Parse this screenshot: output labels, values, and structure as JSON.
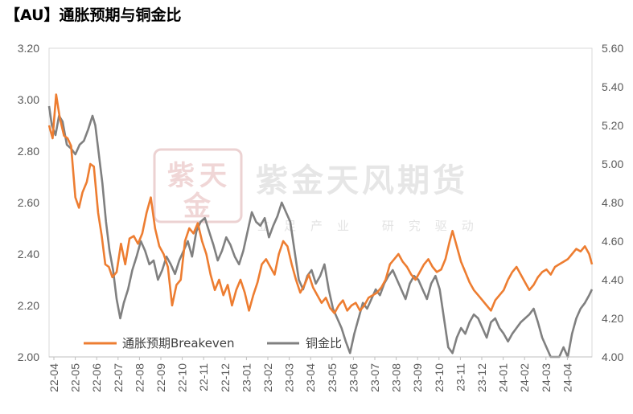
{
  "title": "【AU】通胀预期与铜金比",
  "watermark": {
    "main": "紫金天风期货",
    "sub": "立足产业 研究驱动",
    "logo_chars": [
      "紫",
      "天",
      "金"
    ]
  },
  "colors": {
    "breakeven": "#ED7D31",
    "copper_gold": "#808080",
    "axis": "#595959",
    "watermark": "#E8D0D0"
  },
  "chart_data": {
    "type": "line",
    "title": "【AU】通胀预期与铜金比",
    "x_tick_labels": [
      "22-04",
      "22-05",
      "22-06",
      "22-07",
      "22-08",
      "22-09",
      "22-10",
      "22-11",
      "22-12",
      "23-01",
      "23-02",
      "23-03",
      "23-04",
      "23-05",
      "23-06",
      "23-07",
      "23-08",
      "23-09",
      "23-10",
      "23-11",
      "23-12",
      "24-01",
      "24-02",
      "24-03",
      "24-04"
    ],
    "y_left": {
      "min": 2.0,
      "max": 3.2,
      "ticks": [
        "2.00",
        "2.20",
        "2.40",
        "2.60",
        "2.80",
        "3.00",
        "3.20"
      ]
    },
    "y_right": {
      "min": 4.0,
      "max": 5.6,
      "ticks": [
        "4.00",
        "4.20",
        "4.40",
        "4.60",
        "4.80",
        "5.00",
        "5.20",
        "5.40",
        "5.60"
      ]
    },
    "grid": false,
    "legend_position": "bottom-left-inside",
    "series": [
      {
        "name": "通胀预期Breakeven",
        "axis": "left",
        "points": [
          [
            "2022-04-01",
            2.9
          ],
          [
            "2022-04-06",
            2.85
          ],
          [
            "2022-04-11",
            3.02
          ],
          [
            "2022-04-16",
            2.93
          ],
          [
            "2022-04-22",
            2.86
          ],
          [
            "2022-04-27",
            2.85
          ],
          [
            "2022-05-02",
            2.82
          ],
          [
            "2022-05-08",
            2.62
          ],
          [
            "2022-05-13",
            2.58
          ],
          [
            "2022-05-18",
            2.64
          ],
          [
            "2022-05-24",
            2.68
          ],
          [
            "2022-05-29",
            2.75
          ],
          [
            "2022-06-03",
            2.74
          ],
          [
            "2022-06-09",
            2.56
          ],
          [
            "2022-06-14",
            2.47
          ],
          [
            "2022-06-19",
            2.36
          ],
          [
            "2022-06-24",
            2.35
          ],
          [
            "2022-06-29",
            2.31
          ],
          [
            "2022-07-05",
            2.33
          ],
          [
            "2022-07-11",
            2.44
          ],
          [
            "2022-07-17",
            2.36
          ],
          [
            "2022-07-23",
            2.46
          ],
          [
            "2022-07-29",
            2.47
          ],
          [
            "2022-08-04",
            2.44
          ],
          [
            "2022-08-10",
            2.48
          ],
          [
            "2022-08-16",
            2.56
          ],
          [
            "2022-08-22",
            2.62
          ],
          [
            "2022-08-28",
            2.5
          ],
          [
            "2022-09-03",
            2.43
          ],
          [
            "2022-09-09",
            2.4
          ],
          [
            "2022-09-15",
            2.35
          ],
          [
            "2022-09-21",
            2.2
          ],
          [
            "2022-09-27",
            2.28
          ],
          [
            "2022-10-03",
            2.3
          ],
          [
            "2022-10-09",
            2.45
          ],
          [
            "2022-10-15",
            2.5
          ],
          [
            "2022-10-21",
            2.48
          ],
          [
            "2022-10-27",
            2.52
          ],
          [
            "2022-11-02",
            2.45
          ],
          [
            "2022-11-08",
            2.4
          ],
          [
            "2022-11-14",
            2.32
          ],
          [
            "2022-11-20",
            2.26
          ],
          [
            "2022-11-26",
            2.3
          ],
          [
            "2022-12-02",
            2.24
          ],
          [
            "2022-12-08",
            2.28
          ],
          [
            "2022-12-14",
            2.2
          ],
          [
            "2022-12-20",
            2.26
          ],
          [
            "2022-12-26",
            2.3
          ],
          [
            "2023-01-01",
            2.25
          ],
          [
            "2023-01-07",
            2.18
          ],
          [
            "2023-01-13",
            2.24
          ],
          [
            "2023-01-19",
            2.29
          ],
          [
            "2023-01-25",
            2.36
          ],
          [
            "2023-01-31",
            2.38
          ],
          [
            "2023-02-06",
            2.35
          ],
          [
            "2023-02-12",
            2.32
          ],
          [
            "2023-02-18",
            2.4
          ],
          [
            "2023-02-24",
            2.45
          ],
          [
            "2023-03-02",
            2.43
          ],
          [
            "2023-03-08",
            2.36
          ],
          [
            "2023-03-14",
            2.3
          ],
          [
            "2023-03-20",
            2.25
          ],
          [
            "2023-03-26",
            2.28
          ],
          [
            "2023-04-01",
            2.32
          ],
          [
            "2023-04-07",
            2.27
          ],
          [
            "2023-04-13",
            2.24
          ],
          [
            "2023-04-19",
            2.21
          ],
          [
            "2023-04-25",
            2.23
          ],
          [
            "2023-05-01",
            2.19
          ],
          [
            "2023-05-07",
            2.17
          ],
          [
            "2023-05-13",
            2.2
          ],
          [
            "2023-05-19",
            2.22
          ],
          [
            "2023-05-25",
            2.18
          ],
          [
            "2023-05-31",
            2.2
          ],
          [
            "2023-06-06",
            2.21
          ],
          [
            "2023-06-12",
            2.18
          ],
          [
            "2023-06-18",
            2.2
          ],
          [
            "2023-06-24",
            2.23
          ],
          [
            "2023-06-30",
            2.24
          ],
          [
            "2023-07-06",
            2.25
          ],
          [
            "2023-07-12",
            2.27
          ],
          [
            "2023-07-18",
            2.3
          ],
          [
            "2023-07-24",
            2.36
          ],
          [
            "2023-07-30",
            2.38
          ],
          [
            "2023-08-05",
            2.4
          ],
          [
            "2023-08-11",
            2.37
          ],
          [
            "2023-08-17",
            2.35
          ],
          [
            "2023-08-23",
            2.32
          ],
          [
            "2023-08-29",
            2.3
          ],
          [
            "2023-09-04",
            2.33
          ],
          [
            "2023-09-10",
            2.36
          ],
          [
            "2023-09-16",
            2.38
          ],
          [
            "2023-09-22",
            2.35
          ],
          [
            "2023-09-28",
            2.33
          ],
          [
            "2023-10-04",
            2.34
          ],
          [
            "2023-10-10",
            2.38
          ],
          [
            "2023-10-16",
            2.45
          ],
          [
            "2023-10-20",
            2.49
          ],
          [
            "2023-10-26",
            2.43
          ],
          [
            "2023-11-01",
            2.37
          ],
          [
            "2023-11-07",
            2.33
          ],
          [
            "2023-11-13",
            2.29
          ],
          [
            "2023-11-19",
            2.26
          ],
          [
            "2023-11-25",
            2.24
          ],
          [
            "2023-12-01",
            2.22
          ],
          [
            "2023-12-07",
            2.2
          ],
          [
            "2023-12-13",
            2.18
          ],
          [
            "2023-12-19",
            2.22
          ],
          [
            "2023-12-25",
            2.24
          ],
          [
            "2023-12-31",
            2.26
          ],
          [
            "2024-01-06",
            2.3
          ],
          [
            "2024-01-12",
            2.33
          ],
          [
            "2024-01-18",
            2.35
          ],
          [
            "2024-01-24",
            2.32
          ],
          [
            "2024-01-30",
            2.29
          ],
          [
            "2024-02-05",
            2.26
          ],
          [
            "2024-02-11",
            2.28
          ],
          [
            "2024-02-17",
            2.31
          ],
          [
            "2024-02-23",
            2.33
          ],
          [
            "2024-02-29",
            2.34
          ],
          [
            "2024-03-06",
            2.32
          ],
          [
            "2024-03-12",
            2.35
          ],
          [
            "2024-03-18",
            2.36
          ],
          [
            "2024-03-24",
            2.37
          ],
          [
            "2024-03-30",
            2.38
          ],
          [
            "2024-04-05",
            2.4
          ],
          [
            "2024-04-11",
            2.42
          ],
          [
            "2024-04-17",
            2.41
          ],
          [
            "2024-04-23",
            2.43
          ],
          [
            "2024-04-29",
            2.4
          ],
          [
            "2024-05-03",
            2.36
          ]
        ]
      },
      {
        "name": "铜金比",
        "axis": "right",
        "points": [
          [
            "2022-04-01",
            5.3
          ],
          [
            "2022-04-05",
            5.2
          ],
          [
            "2022-04-10",
            5.15
          ],
          [
            "2022-04-15",
            5.25
          ],
          [
            "2022-04-20",
            5.22
          ],
          [
            "2022-04-26",
            5.1
          ],
          [
            "2022-05-02",
            5.08
          ],
          [
            "2022-05-08",
            5.05
          ],
          [
            "2022-05-14",
            5.1
          ],
          [
            "2022-05-20",
            5.12
          ],
          [
            "2022-05-26",
            5.18
          ],
          [
            "2022-06-01",
            5.25
          ],
          [
            "2022-06-05",
            5.2
          ],
          [
            "2022-06-10",
            5.05
          ],
          [
            "2022-06-15",
            4.9
          ],
          [
            "2022-06-20",
            4.7
          ],
          [
            "2022-06-25",
            4.55
          ],
          [
            "2022-06-30",
            4.45
          ],
          [
            "2022-07-05",
            4.3
          ],
          [
            "2022-07-10",
            4.2
          ],
          [
            "2022-07-15",
            4.28
          ],
          [
            "2022-07-21",
            4.35
          ],
          [
            "2022-07-27",
            4.45
          ],
          [
            "2022-08-02",
            4.52
          ],
          [
            "2022-08-08",
            4.6
          ],
          [
            "2022-08-14",
            4.55
          ],
          [
            "2022-08-20",
            4.48
          ],
          [
            "2022-08-26",
            4.5
          ],
          [
            "2022-09-01",
            4.4
          ],
          [
            "2022-09-07",
            4.45
          ],
          [
            "2022-09-13",
            4.52
          ],
          [
            "2022-09-19",
            4.48
          ],
          [
            "2022-09-25",
            4.43
          ],
          [
            "2022-10-01",
            4.5
          ],
          [
            "2022-10-07",
            4.55
          ],
          [
            "2022-10-13",
            4.6
          ],
          [
            "2022-10-19",
            4.52
          ],
          [
            "2022-10-25",
            4.65
          ],
          [
            "2022-10-31",
            4.7
          ],
          [
            "2022-11-06",
            4.72
          ],
          [
            "2022-11-12",
            4.65
          ],
          [
            "2022-11-18",
            4.58
          ],
          [
            "2022-11-24",
            4.5
          ],
          [
            "2022-11-30",
            4.55
          ],
          [
            "2022-12-06",
            4.62
          ],
          [
            "2022-12-12",
            4.58
          ],
          [
            "2022-12-18",
            4.52
          ],
          [
            "2022-12-24",
            4.48
          ],
          [
            "2022-12-30",
            4.55
          ],
          [
            "2023-01-05",
            4.65
          ],
          [
            "2023-01-11",
            4.75
          ],
          [
            "2023-01-17",
            4.7
          ],
          [
            "2023-01-23",
            4.68
          ],
          [
            "2023-01-29",
            4.72
          ],
          [
            "2023-02-04",
            4.62
          ],
          [
            "2023-02-10",
            4.68
          ],
          [
            "2023-02-16",
            4.73
          ],
          [
            "2023-02-22",
            4.8
          ],
          [
            "2023-02-28",
            4.75
          ],
          [
            "2023-03-06",
            4.7
          ],
          [
            "2023-03-12",
            4.55
          ],
          [
            "2023-03-18",
            4.4
          ],
          [
            "2023-03-24",
            4.35
          ],
          [
            "2023-03-30",
            4.42
          ],
          [
            "2023-04-05",
            4.45
          ],
          [
            "2023-04-11",
            4.38
          ],
          [
            "2023-04-17",
            4.42
          ],
          [
            "2023-04-23",
            4.48
          ],
          [
            "2023-04-29",
            4.35
          ],
          [
            "2023-05-05",
            4.25
          ],
          [
            "2023-05-11",
            4.2
          ],
          [
            "2023-05-17",
            4.15
          ],
          [
            "2023-05-23",
            4.08
          ],
          [
            "2023-05-29",
            4.02
          ],
          [
            "2023-06-04",
            4.12
          ],
          [
            "2023-06-10",
            4.2
          ],
          [
            "2023-06-16",
            4.28
          ],
          [
            "2023-06-22",
            4.25
          ],
          [
            "2023-06-28",
            4.3
          ],
          [
            "2023-07-04",
            4.35
          ],
          [
            "2023-07-10",
            4.32
          ],
          [
            "2023-07-16",
            4.38
          ],
          [
            "2023-07-22",
            4.42
          ],
          [
            "2023-07-28",
            4.45
          ],
          [
            "2023-08-03",
            4.4
          ],
          [
            "2023-08-09",
            4.35
          ],
          [
            "2023-08-15",
            4.3
          ],
          [
            "2023-08-21",
            4.38
          ],
          [
            "2023-08-27",
            4.42
          ],
          [
            "2023-09-02",
            4.4
          ],
          [
            "2023-09-08",
            4.35
          ],
          [
            "2023-09-14",
            4.3
          ],
          [
            "2023-09-20",
            4.38
          ],
          [
            "2023-09-26",
            4.42
          ],
          [
            "2023-10-02",
            4.35
          ],
          [
            "2023-10-08",
            4.2
          ],
          [
            "2023-10-14",
            4.05
          ],
          [
            "2023-10-20",
            4.02
          ],
          [
            "2023-10-26",
            4.1
          ],
          [
            "2023-11-01",
            4.15
          ],
          [
            "2023-11-07",
            4.12
          ],
          [
            "2023-11-13",
            4.18
          ],
          [
            "2023-11-19",
            4.22
          ],
          [
            "2023-11-25",
            4.2
          ],
          [
            "2023-12-01",
            4.15
          ],
          [
            "2023-12-07",
            4.1
          ],
          [
            "2023-12-13",
            4.18
          ],
          [
            "2023-12-19",
            4.2
          ],
          [
            "2023-12-25",
            4.15
          ],
          [
            "2023-12-31",
            4.12
          ],
          [
            "2024-01-06",
            4.08
          ],
          [
            "2024-01-12",
            4.12
          ],
          [
            "2024-01-18",
            4.15
          ],
          [
            "2024-01-24",
            4.18
          ],
          [
            "2024-01-30",
            4.2
          ],
          [
            "2024-02-05",
            4.22
          ],
          [
            "2024-02-11",
            4.25
          ],
          [
            "2024-02-17",
            4.18
          ],
          [
            "2024-02-23",
            4.1
          ],
          [
            "2024-02-29",
            4.05
          ],
          [
            "2024-03-06",
            4.0
          ],
          [
            "2024-03-12",
            3.98
          ],
          [
            "2024-03-18",
            3.95
          ],
          [
            "2024-03-24",
            4.05
          ],
          [
            "2024-03-30",
            4.0
          ],
          [
            "2024-04-05",
            4.12
          ],
          [
            "2024-04-11",
            4.2
          ],
          [
            "2024-04-17",
            4.25
          ],
          [
            "2024-04-23",
            4.28
          ],
          [
            "2024-04-29",
            4.32
          ],
          [
            "2024-05-03",
            4.35
          ]
        ]
      }
    ]
  }
}
